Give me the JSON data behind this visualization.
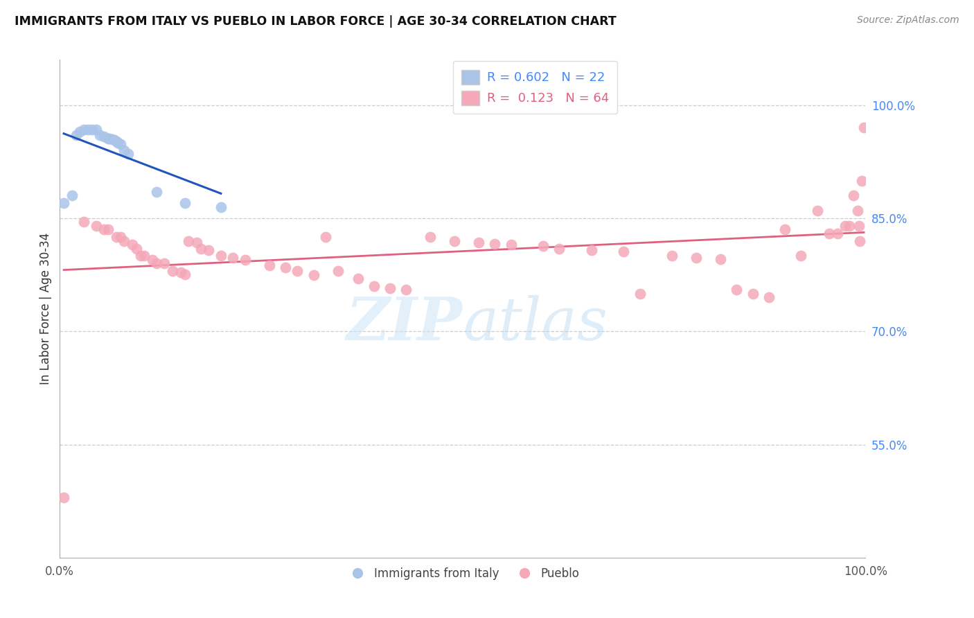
{
  "title": "IMMIGRANTS FROM ITALY VS PUEBLO IN LABOR FORCE | AGE 30-34 CORRELATION CHART",
  "source": "Source: ZipAtlas.com",
  "ylabel": "In Labor Force | Age 30-34",
  "xlim": [
    0.0,
    1.0
  ],
  "ylim": [
    0.4,
    1.06
  ],
  "y_tick_labels_right": [
    "55.0%",
    "70.0%",
    "85.0%",
    "100.0%"
  ],
  "y_tick_vals_right": [
    0.55,
    0.7,
    0.85,
    1.0
  ],
  "legend_italy_r": "0.602",
  "legend_italy_n": "22",
  "legend_pueblo_r": "0.123",
  "legend_pueblo_n": "64",
  "italy_color": "#aac4e8",
  "pueblo_color": "#f4a8b8",
  "italy_line_color": "#2255bb",
  "pueblo_line_color": "#e06080",
  "italy_x": [
    0.005,
    0.015,
    0.02,
    0.025,
    0.03,
    0.035,
    0.04,
    0.045,
    0.05,
    0.055,
    0.06,
    0.062,
    0.065,
    0.068,
    0.07,
    0.072,
    0.075,
    0.08,
    0.085,
    0.12,
    0.155,
    0.2
  ],
  "italy_y": [
    0.87,
    0.88,
    0.96,
    0.965,
    0.968,
    0.968,
    0.968,
    0.968,
    0.96,
    0.958,
    0.956,
    0.956,
    0.955,
    0.954,
    0.952,
    0.95,
    0.948,
    0.94,
    0.935,
    0.885,
    0.87,
    0.865
  ],
  "pueblo_x": [
    0.005,
    0.03,
    0.045,
    0.055,
    0.06,
    0.07,
    0.075,
    0.08,
    0.09,
    0.095,
    0.1,
    0.105,
    0.115,
    0.12,
    0.13,
    0.14,
    0.15,
    0.155,
    0.16,
    0.17,
    0.175,
    0.185,
    0.2,
    0.215,
    0.23,
    0.26,
    0.28,
    0.295,
    0.315,
    0.33,
    0.345,
    0.37,
    0.39,
    0.41,
    0.43,
    0.46,
    0.49,
    0.52,
    0.54,
    0.56,
    0.6,
    0.62,
    0.66,
    0.7,
    0.72,
    0.76,
    0.79,
    0.82,
    0.84,
    0.86,
    0.88,
    0.9,
    0.92,
    0.94,
    0.955,
    0.965,
    0.975,
    0.98,
    0.985,
    0.99,
    0.992,
    0.993,
    0.995,
    0.998
  ],
  "pueblo_y": [
    0.48,
    0.845,
    0.84,
    0.835,
    0.835,
    0.825,
    0.825,
    0.82,
    0.815,
    0.81,
    0.8,
    0.8,
    0.795,
    0.79,
    0.79,
    0.78,
    0.778,
    0.776,
    0.82,
    0.818,
    0.81,
    0.808,
    0.8,
    0.798,
    0.795,
    0.788,
    0.785,
    0.78,
    0.775,
    0.825,
    0.78,
    0.77,
    0.76,
    0.757,
    0.755,
    0.825,
    0.82,
    0.818,
    0.816,
    0.815,
    0.813,
    0.81,
    0.808,
    0.806,
    0.75,
    0.8,
    0.798,
    0.796,
    0.755,
    0.75,
    0.745,
    0.835,
    0.8,
    0.86,
    0.83,
    0.83,
    0.84,
    0.84,
    0.88,
    0.86,
    0.84,
    0.82,
    0.9,
    0.97
  ]
}
